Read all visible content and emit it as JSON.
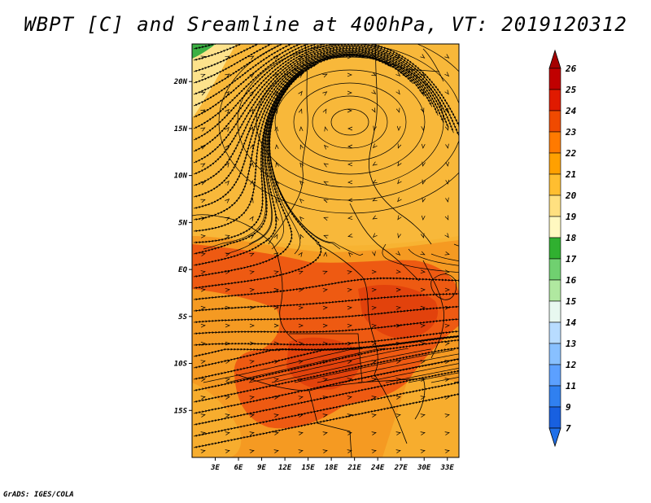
{
  "title": "WBPT [C] and Sreamline at 400hPa, VT: 2019120312",
  "credit": "GrADS: IGES/COLA",
  "map": {
    "lon_labels": [
      "3E",
      "6E",
      "9E",
      "12E",
      "15E",
      "18E",
      "21E",
      "24E",
      "27E",
      "30E",
      "33E"
    ],
    "lat_labels": [
      "20N",
      "15N",
      "10N",
      "5N",
      "EQ",
      "5S",
      "10S",
      "15S"
    ],
    "lon_range": [
      0,
      34.5
    ],
    "lat_range": [
      -20,
      24
    ]
  },
  "colorbar": {
    "levels": [
      "26",
      "25",
      "24",
      "23",
      "22",
      "21",
      "20",
      "19",
      "18",
      "17",
      "16",
      "15",
      "14",
      "13",
      "12",
      "11",
      "9",
      "7"
    ],
    "colors": [
      "#a50000",
      "#c00000",
      "#e01a00",
      "#f04a00",
      "#ff7a00",
      "#ffa000",
      "#ffbe30",
      "#ffe080",
      "#fff8c0",
      "#30b030",
      "#70d070",
      "#b0e8a0",
      "#e8f8f0",
      "#b8dcff",
      "#88c0ff",
      "#5ca0ff",
      "#3080f0",
      "#1860e0",
      "#2070e8"
    ]
  },
  "colors": {
    "warm_core": "#e84a10",
    "orange": "#f49a20",
    "light_orange": "#f7b030",
    "green_patch": "#3cb043"
  }
}
